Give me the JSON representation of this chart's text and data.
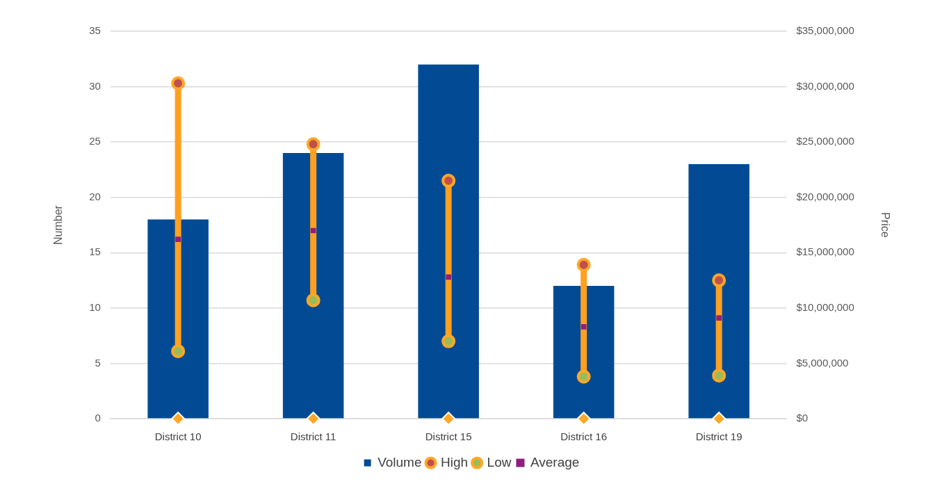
{
  "chart_data": {
    "type": "bar",
    "categories": [
      "District 10",
      "District 11",
      "District 15",
      "District 16",
      "District 19"
    ],
    "ylabel": "Number",
    "y2label": "Price",
    "ylim": [
      0,
      35
    ],
    "yticks": [
      0,
      5,
      10,
      15,
      20,
      25,
      30,
      35
    ],
    "y2lim": [
      0,
      35000000
    ],
    "y2ticks": [
      {
        "value": 0,
        "label": "$0"
      },
      {
        "value": 5000000,
        "label": "$5,000,000"
      },
      {
        "value": 10000000,
        "label": "$10,000,000"
      },
      {
        "value": 15000000,
        "label": "$15,000,000"
      },
      {
        "value": 20000000,
        "label": "$20,000,000"
      },
      {
        "value": 25000000,
        "label": "$25,000,000"
      },
      {
        "value": 30000000,
        "label": "$30,000,000"
      },
      {
        "value": 35000000,
        "label": "$35,000,000"
      }
    ],
    "grid": "y",
    "legend": "bottom",
    "series": [
      {
        "name": "Volume",
        "color": "#024b94",
        "values": [
          18,
          24,
          32,
          12,
          23
        ]
      },
      {
        "name": "High",
        "type": "scatter",
        "axis": "y2",
        "marker": "circle",
        "color": "#c0504d",
        "values": [
          30300000,
          24800000,
          21500000,
          13900000,
          12500000
        ]
      },
      {
        "name": "Low",
        "type": "scatter",
        "axis": "y2",
        "marker": "circle",
        "color": "#9bbb59",
        "values": [
          6100000,
          10700000,
          7000000,
          3800000,
          3900000
        ]
      },
      {
        "name": "Average",
        "type": "scatter",
        "axis": "y2",
        "marker": "square",
        "color": "#8e1f7e",
        "values": [
          16200000,
          17000000,
          12800000,
          8300000,
          9100000
        ]
      },
      {
        "type": "scatter",
        "marker": "diamond",
        "color": "#ffa726",
        "values": [
          0,
          0,
          0,
          0,
          0
        ]
      }
    ]
  }
}
